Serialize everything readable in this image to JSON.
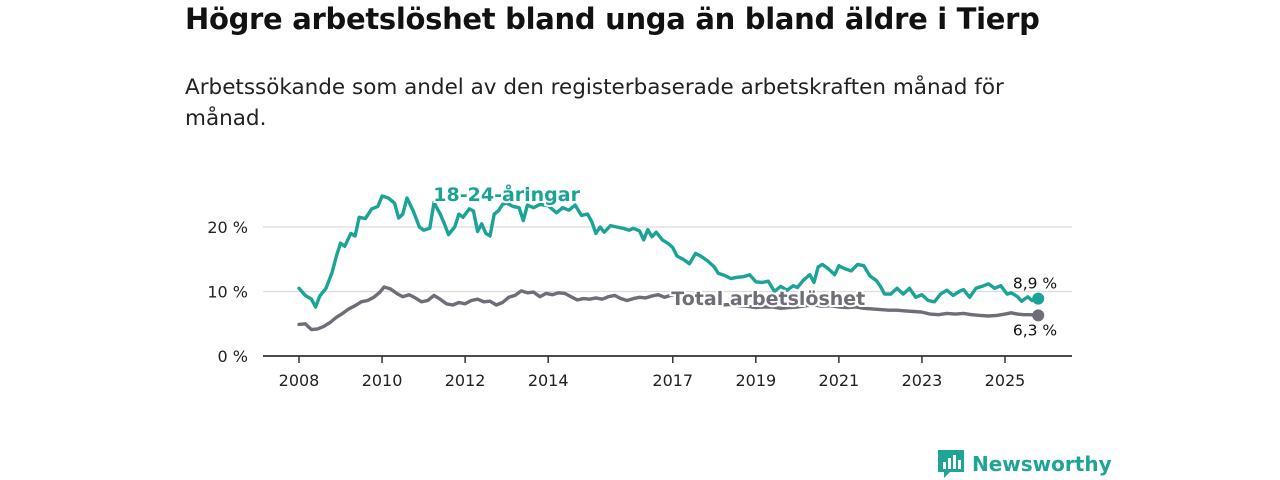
{
  "title": "Högre arbetslöshet bland unga än bland äldre i Tierp",
  "subtitle": "Arbetssökande som andel av den registerbaserade arbetskraften månad för månad.",
  "brand": "Newsworthy",
  "colors": {
    "youth": "#1aa396",
    "total": "#6e6d78",
    "grid": "#dcdcdc",
    "axis": "#333333"
  },
  "chart_data": {
    "type": "line",
    "title": "Högre arbetslöshet bland unga än bland äldre i Tierp",
    "subtitle": "Arbetssökande som andel av den registerbaserade arbetskraften månad för månad.",
    "xlabel": "",
    "ylabel": "",
    "xlim": [
      2008,
      2026
    ],
    "ylim": [
      0,
      25
    ],
    "x_ticks": [
      2008,
      2010,
      2012,
      2014,
      2017,
      2019,
      2021,
      2023,
      2025
    ],
    "x_tick_labels": [
      "2008",
      "2010",
      "2012",
      "2014",
      "2017",
      "2019",
      "2021",
      "2023",
      "2025"
    ],
    "y_ticks": [
      0,
      10,
      20
    ],
    "y_tick_labels": [
      "0 %",
      "10 %",
      "20 %"
    ],
    "grid": true,
    "series": [
      {
        "name": "18-24-åringar",
        "color": "#1aa396",
        "end_label": "8,9 %",
        "points": [
          [
            2008.0,
            10.5
          ],
          [
            2008.15,
            9.4
          ],
          [
            2008.3,
            8.8
          ],
          [
            2008.4,
            7.6
          ],
          [
            2008.5,
            9.3
          ],
          [
            2008.65,
            10.5
          ],
          [
            2008.8,
            13.0
          ],
          [
            2008.9,
            15.5
          ],
          [
            2009.0,
            17.5
          ],
          [
            2009.1,
            17.0
          ],
          [
            2009.25,
            19.0
          ],
          [
            2009.35,
            18.6
          ],
          [
            2009.45,
            21.5
          ],
          [
            2009.6,
            21.3
          ],
          [
            2009.75,
            22.8
          ],
          [
            2009.9,
            23.2
          ],
          [
            2010.0,
            24.8
          ],
          [
            2010.15,
            24.5
          ],
          [
            2010.3,
            23.7
          ],
          [
            2010.4,
            21.4
          ],
          [
            2010.5,
            22.0
          ],
          [
            2010.6,
            24.5
          ],
          [
            2010.75,
            22.5
          ],
          [
            2010.9,
            20.0
          ],
          [
            2011.0,
            19.5
          ],
          [
            2011.15,
            19.8
          ],
          [
            2011.25,
            23.8
          ],
          [
            2011.4,
            22.0
          ],
          [
            2011.5,
            20.5
          ],
          [
            2011.6,
            18.8
          ],
          [
            2011.75,
            20.0
          ],
          [
            2011.85,
            22.0
          ],
          [
            2011.95,
            21.5
          ],
          [
            2012.1,
            22.8
          ],
          [
            2012.2,
            22.5
          ],
          [
            2012.3,
            19.3
          ],
          [
            2012.4,
            20.5
          ],
          [
            2012.5,
            19.0
          ],
          [
            2012.6,
            18.6
          ],
          [
            2012.7,
            22.0
          ],
          [
            2012.8,
            22.5
          ],
          [
            2012.9,
            23.5
          ],
          [
            2013.0,
            23.7
          ],
          [
            2013.15,
            23.2
          ],
          [
            2013.3,
            23.0
          ],
          [
            2013.4,
            21.0
          ],
          [
            2013.5,
            23.4
          ],
          [
            2013.65,
            23.0
          ],
          [
            2013.8,
            23.5
          ],
          [
            2014.0,
            23.3
          ],
          [
            2014.2,
            22.2
          ],
          [
            2014.35,
            23.0
          ],
          [
            2014.5,
            22.6
          ],
          [
            2014.65,
            23.4
          ],
          [
            2014.8,
            21.8
          ],
          [
            2014.95,
            22.0
          ],
          [
            2015.05,
            20.8
          ],
          [
            2015.15,
            19.0
          ],
          [
            2015.25,
            20.0
          ],
          [
            2015.35,
            19.2
          ],
          [
            2015.5,
            20.2
          ],
          [
            2015.65,
            20.0
          ],
          [
            2015.8,
            19.8
          ],
          [
            2015.95,
            19.5
          ],
          [
            2016.05,
            19.8
          ],
          [
            2016.2,
            19.4
          ],
          [
            2016.3,
            18.0
          ],
          [
            2016.4,
            19.6
          ],
          [
            2016.5,
            18.5
          ],
          [
            2016.6,
            19.2
          ],
          [
            2016.75,
            18.0
          ],
          [
            2016.9,
            17.4
          ],
          [
            2017.0,
            16.8
          ],
          [
            2017.1,
            15.5
          ],
          [
            2017.25,
            15.0
          ],
          [
            2017.4,
            14.3
          ],
          [
            2017.55,
            15.9
          ],
          [
            2017.7,
            15.4
          ],
          [
            2017.85,
            14.7
          ],
          [
            2018.0,
            13.8
          ],
          [
            2018.1,
            12.8
          ],
          [
            2018.25,
            12.5
          ],
          [
            2018.4,
            12.0
          ],
          [
            2018.55,
            12.2
          ],
          [
            2018.7,
            12.3
          ],
          [
            2018.85,
            12.6
          ],
          [
            2019.0,
            11.5
          ],
          [
            2019.15,
            11.4
          ],
          [
            2019.3,
            11.6
          ],
          [
            2019.45,
            10.0
          ],
          [
            2019.6,
            10.8
          ],
          [
            2019.75,
            10.2
          ],
          [
            2019.9,
            10.9
          ],
          [
            2020.0,
            10.6
          ],
          [
            2020.15,
            11.8
          ],
          [
            2020.3,
            12.6
          ],
          [
            2020.4,
            11.4
          ],
          [
            2020.5,
            13.8
          ],
          [
            2020.6,
            14.2
          ],
          [
            2020.75,
            13.5
          ],
          [
            2020.9,
            12.6
          ],
          [
            2021.0,
            14.0
          ],
          [
            2021.15,
            13.5
          ],
          [
            2021.3,
            13.2
          ],
          [
            2021.45,
            14.2
          ],
          [
            2021.6,
            14.0
          ],
          [
            2021.75,
            12.4
          ],
          [
            2021.9,
            11.7
          ],
          [
            2022.0,
            10.8
          ],
          [
            2022.1,
            9.6
          ],
          [
            2022.25,
            9.6
          ],
          [
            2022.4,
            10.5
          ],
          [
            2022.55,
            9.6
          ],
          [
            2022.7,
            10.5
          ],
          [
            2022.85,
            9.1
          ],
          [
            2023.0,
            9.5
          ],
          [
            2023.15,
            8.6
          ],
          [
            2023.3,
            8.4
          ],
          [
            2023.45,
            9.6
          ],
          [
            2023.6,
            10.2
          ],
          [
            2023.75,
            9.4
          ],
          [
            2023.9,
            10.0
          ],
          [
            2024.0,
            10.3
          ],
          [
            2024.15,
            9.1
          ],
          [
            2024.3,
            10.5
          ],
          [
            2024.45,
            10.8
          ],
          [
            2024.6,
            11.2
          ],
          [
            2024.75,
            10.5
          ],
          [
            2024.9,
            10.9
          ],
          [
            2025.05,
            9.6
          ],
          [
            2025.15,
            9.8
          ],
          [
            2025.3,
            9.2
          ],
          [
            2025.4,
            8.5
          ],
          [
            2025.55,
            9.2
          ],
          [
            2025.65,
            8.6
          ],
          [
            2025.8,
            8.9
          ]
        ]
      },
      {
        "name": "Total arbetslöshet",
        "color": "#6e6d78",
        "end_label": "6,3 %",
        "points": [
          [
            2008.0,
            4.9
          ],
          [
            2008.15,
            5.0
          ],
          [
            2008.3,
            4.1
          ],
          [
            2008.45,
            4.2
          ],
          [
            2008.6,
            4.6
          ],
          [
            2008.75,
            5.2
          ],
          [
            2008.9,
            6.0
          ],
          [
            2009.05,
            6.6
          ],
          [
            2009.2,
            7.3
          ],
          [
            2009.35,
            7.8
          ],
          [
            2009.5,
            8.4
          ],
          [
            2009.65,
            8.6
          ],
          [
            2009.8,
            9.1
          ],
          [
            2009.95,
            9.9
          ],
          [
            2010.05,
            10.7
          ],
          [
            2010.2,
            10.4
          ],
          [
            2010.35,
            9.7
          ],
          [
            2010.5,
            9.2
          ],
          [
            2010.65,
            9.5
          ],
          [
            2010.8,
            9.0
          ],
          [
            2010.95,
            8.4
          ],
          [
            2011.1,
            8.6
          ],
          [
            2011.25,
            9.4
          ],
          [
            2011.4,
            8.8
          ],
          [
            2011.55,
            8.1
          ],
          [
            2011.7,
            7.9
          ],
          [
            2011.85,
            8.3
          ],
          [
            2012.0,
            8.1
          ],
          [
            2012.15,
            8.6
          ],
          [
            2012.3,
            8.8
          ],
          [
            2012.45,
            8.4
          ],
          [
            2012.6,
            8.5
          ],
          [
            2012.75,
            7.9
          ],
          [
            2012.9,
            8.3
          ],
          [
            2013.05,
            9.1
          ],
          [
            2013.2,
            9.4
          ],
          [
            2013.35,
            10.1
          ],
          [
            2013.5,
            9.8
          ],
          [
            2013.65,
            9.9
          ],
          [
            2013.8,
            9.2
          ],
          [
            2013.95,
            9.7
          ],
          [
            2014.1,
            9.5
          ],
          [
            2014.25,
            9.8
          ],
          [
            2014.4,
            9.7
          ],
          [
            2014.55,
            9.2
          ],
          [
            2014.7,
            8.7
          ],
          [
            2014.85,
            8.9
          ],
          [
            2015.0,
            8.8
          ],
          [
            2015.15,
            9.0
          ],
          [
            2015.3,
            8.8
          ],
          [
            2015.45,
            9.2
          ],
          [
            2015.6,
            9.4
          ],
          [
            2015.75,
            8.9
          ],
          [
            2015.9,
            8.6
          ],
          [
            2016.05,
            8.9
          ],
          [
            2016.2,
            9.1
          ],
          [
            2016.35,
            9.0
          ],
          [
            2016.5,
            9.3
          ],
          [
            2016.65,
            9.5
          ],
          [
            2016.8,
            9.1
          ],
          [
            2016.95,
            9.4
          ],
          [
            2017.1,
            9.6
          ],
          [
            2017.25,
            9.8
          ],
          [
            2017.4,
            9.2
          ],
          [
            2017.55,
            8.6
          ],
          [
            2017.7,
            8.3
          ],
          [
            2017.85,
            8.0
          ],
          [
            2018.0,
            7.9
          ],
          [
            2018.2,
            7.9
          ],
          [
            2018.4,
            8.0
          ],
          [
            2018.6,
            7.8
          ],
          [
            2018.8,
            7.7
          ],
          [
            2019.0,
            7.5
          ],
          [
            2019.2,
            7.6
          ],
          [
            2019.4,
            7.6
          ],
          [
            2019.6,
            7.4
          ],
          [
            2019.8,
            7.5
          ],
          [
            2020.0,
            7.6
          ],
          [
            2020.2,
            7.8
          ],
          [
            2020.4,
            7.9
          ],
          [
            2020.6,
            7.7
          ],
          [
            2020.8,
            7.8
          ],
          [
            2021.0,
            7.6
          ],
          [
            2021.2,
            7.5
          ],
          [
            2021.4,
            7.6
          ],
          [
            2021.6,
            7.4
          ],
          [
            2021.8,
            7.3
          ],
          [
            2022.0,
            7.2
          ],
          [
            2022.2,
            7.1
          ],
          [
            2022.4,
            7.1
          ],
          [
            2022.6,
            7.0
          ],
          [
            2022.8,
            6.9
          ],
          [
            2023.0,
            6.8
          ],
          [
            2023.2,
            6.5
          ],
          [
            2023.4,
            6.4
          ],
          [
            2023.6,
            6.6
          ],
          [
            2023.8,
            6.5
          ],
          [
            2024.0,
            6.6
          ],
          [
            2024.2,
            6.4
          ],
          [
            2024.4,
            6.3
          ],
          [
            2024.6,
            6.2
          ],
          [
            2024.8,
            6.3
          ],
          [
            2025.0,
            6.5
          ],
          [
            2025.15,
            6.7
          ],
          [
            2025.3,
            6.5
          ],
          [
            2025.45,
            6.4
          ],
          [
            2025.6,
            6.4
          ],
          [
            2025.8,
            6.3
          ]
        ]
      }
    ],
    "annotations": [
      {
        "text": "18-24-åringar",
        "series": "18-24-åringar",
        "x": 2013.0,
        "y": 24.0
      },
      {
        "text": "Total arbetslöshet",
        "series": "Total arbetslöshet",
        "x": 2019.3,
        "y": 7.9
      }
    ]
  }
}
